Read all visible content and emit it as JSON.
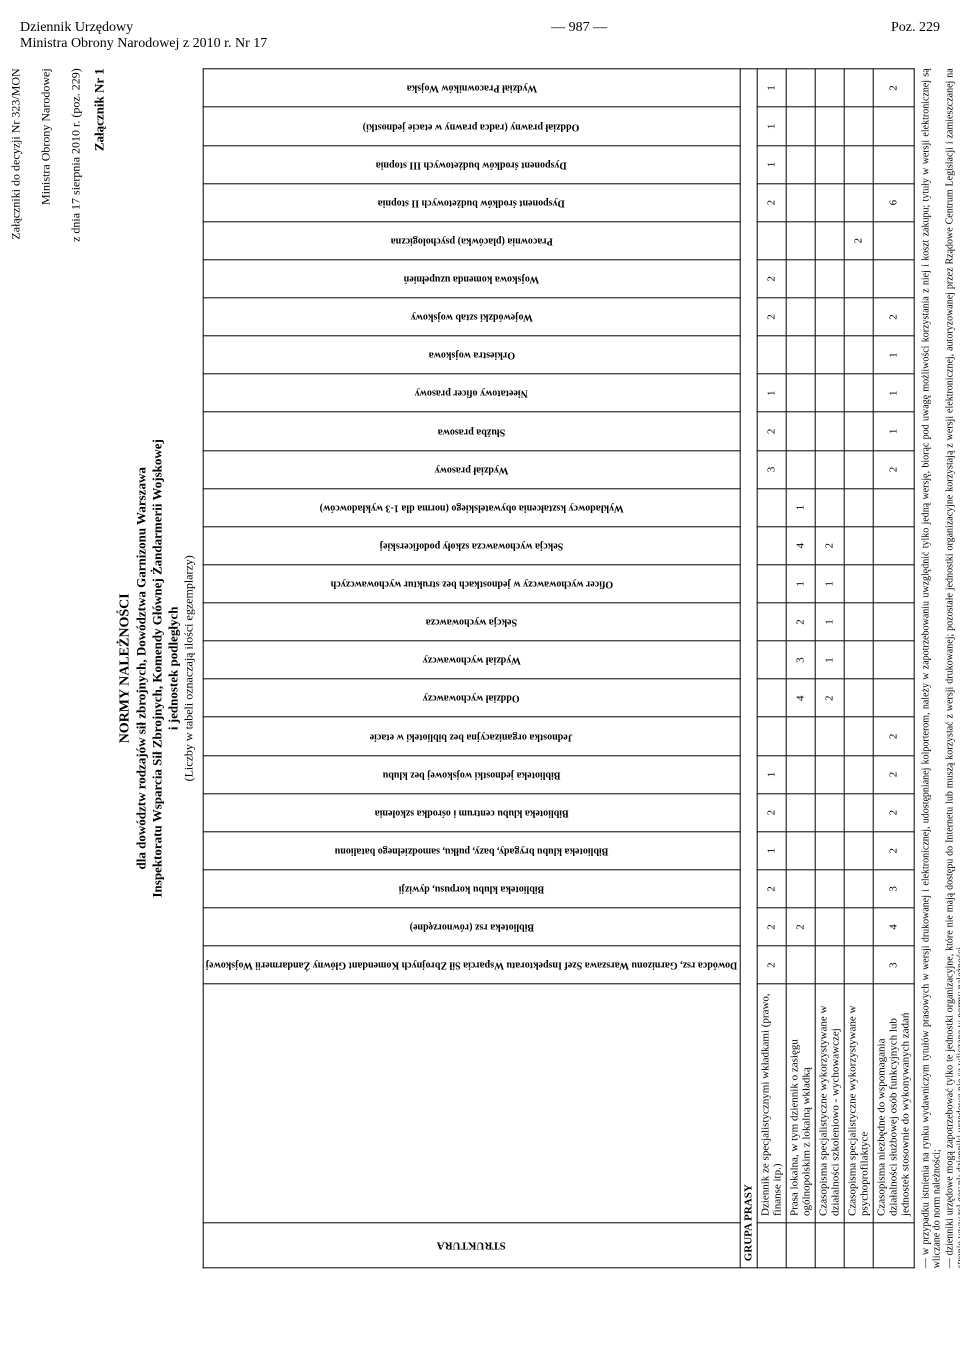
{
  "header": {
    "left_line1": "Dziennik Urzędowy",
    "left_line2": "Ministra Obrony Narodowej z 2010 r. Nr 17",
    "center": "— 987 —",
    "right": "Poz. 229"
  },
  "top_refs": {
    "right_line1": "Załączniki do decyzji Nr 323/MON",
    "right_line2": "Ministra   Obrony   Narodowej",
    "right_line3": "z dnia 17 sierpnia 2010 r. (poz. 229)"
  },
  "attachment": "Załącznik Nr 1",
  "title": {
    "main": "NORMY NALEŻNOŚCI",
    "sub1": "dla dowództw rodzajów sił zbrojnych, Dowództwa Garnizonu Warszawa",
    "sub2": "Inspektoratu Wsparcia Sił Zbrojnych, Komendy Głównej Żandarmerii Wojskowej",
    "sub3": "i jednostek podległych",
    "note": "(Liczby w tabeli oznaczają ilości egzemplarzy)"
  },
  "struktura_label": "STRUKTURA",
  "grupa_label": "GRUPA PRASY",
  "columns": [
    "Dowódca rsz, Garnizonu Warszawa Szef Inspektoratu Wsparcia Sił Zbrojnych Komendant Główny Żandarmerii Wojskowej",
    "Biblioteka rsz (równorzędne)",
    "Biblioteka klubu korpusu, dywizji",
    "Biblioteka klubu brygady, bazy, pułku, samodzielnego batalionu",
    "Biblioteka klubu centrum i ośrodka szkolenia",
    "Biblioteka jednostki wojskowej bez klubu",
    "Jednostka organizacyjna bez biblioteki w etacie",
    "Oddział wychowawczy",
    "Wydział wychowawczy",
    "Sekcja wychowawcza",
    "Oficer wychowawczy w jednostkach bez struktur wychowawczych",
    "Sekcja wychowawcza szkoły podoficerskiej",
    "Wykładowcy kształcenia obywatelskiego (norma dla 1-3 wykładowców)",
    "Wydział prasowy",
    "Służba prasowa",
    "Nieetatowy oficer prasowy",
    "Orkiestra wojskowa",
    "Wojewódzki sztab wojskowy",
    "Wojskowa komenda uzupełnień",
    "Pracownia (placówka) psychologiczna",
    "Dysponent środków budżetowych II stopnia",
    "Dysponent środków budżetowych III stopnia",
    "Oddział prawny (radca prawny w etacie jednostki)",
    "Wydział Pracowników Wojska"
  ],
  "rows": [
    {
      "label": "Dziennik ze specjalistycznymi wkładkami (prawo, finanse itp.)",
      "vals": [
        "2",
        "2",
        "2",
        "1",
        "2",
        "1",
        "",
        "",
        "",
        "",
        "",
        "",
        "",
        "3",
        "2",
        "1",
        "",
        "2",
        "2",
        "",
        "2",
        "1",
        "1",
        "1"
      ]
    },
    {
      "label": "Prasa lokalna, w tym dziennik o zasięgu ogólnopolskim z lokalną wkładką",
      "vals": [
        "",
        "2",
        "",
        "",
        "",
        "",
        "",
        "4",
        "3",
        "2",
        "1",
        "4",
        "1",
        "",
        "",
        "",
        "",
        "",
        "",
        "",
        "",
        "",
        "",
        ""
      ]
    },
    {
      "label": "Czasopisma specjalistyczne wykorzystywane w działalności szkoleniowo - wychowawczej",
      "vals": [
        "",
        "",
        "",
        "",
        "",
        "",
        "",
        "2",
        "1",
        "1",
        "1",
        "2",
        "",
        "",
        "",
        "",
        "",
        "",
        "",
        "",
        "",
        "",
        "",
        ""
      ]
    },
    {
      "label": "Czasopisma specjalistyczne wykorzystywane w psychoprofilaktyce",
      "vals": [
        "",
        "",
        "",
        "",
        "",
        "",
        "",
        "",
        "",
        "",
        "",
        "",
        "",
        "",
        "",
        "",
        "",
        "",
        "",
        "2",
        "",
        "",
        "",
        ""
      ]
    },
    {
      "label": "Czasopisma niezbędne do wspomagania działalności służbowej osób funkcyjnych lub jednostek stosownie do wykonywanych zadań",
      "vals": [
        "3",
        "4",
        "3",
        "2",
        "2",
        "2",
        "2",
        "",
        "",
        "",
        "",
        "",
        "",
        "2",
        "1",
        "1",
        "1",
        "2",
        "",
        "",
        "6",
        "",
        "",
        "2"
      ]
    }
  ],
  "footnotes": {
    "f1": "— w przypadku istnienia na rynku wydawniczym tytułów prasowych w wersji drukowanej i elektronicznej, udostępnianej kolporterom, należy w zapotrzebowaniu uwzględnić tylko jedną wersję, biorąc pod uwagę możliwości korzystania z niej i koszt zakupu; tytuły w wersji elektronicznej są wliczane do norm należności;",
    "f2": "— dzienniki urzędowe mogą zapotrzebować tylko te jednostki organizacyjne, które nie mają dostępu do Internetu lub muszą korzystać z wersji drukowanej; pozostałe jednostki organizacyjne korzystają z wersji elektronicznej, autoryzowanej przez Rządowe Centrum Legislacji i zamieszczanej na stronie www.rcl.gov.pl; dzienniki urzędowe nie są wliczane w normy należności."
  }
}
